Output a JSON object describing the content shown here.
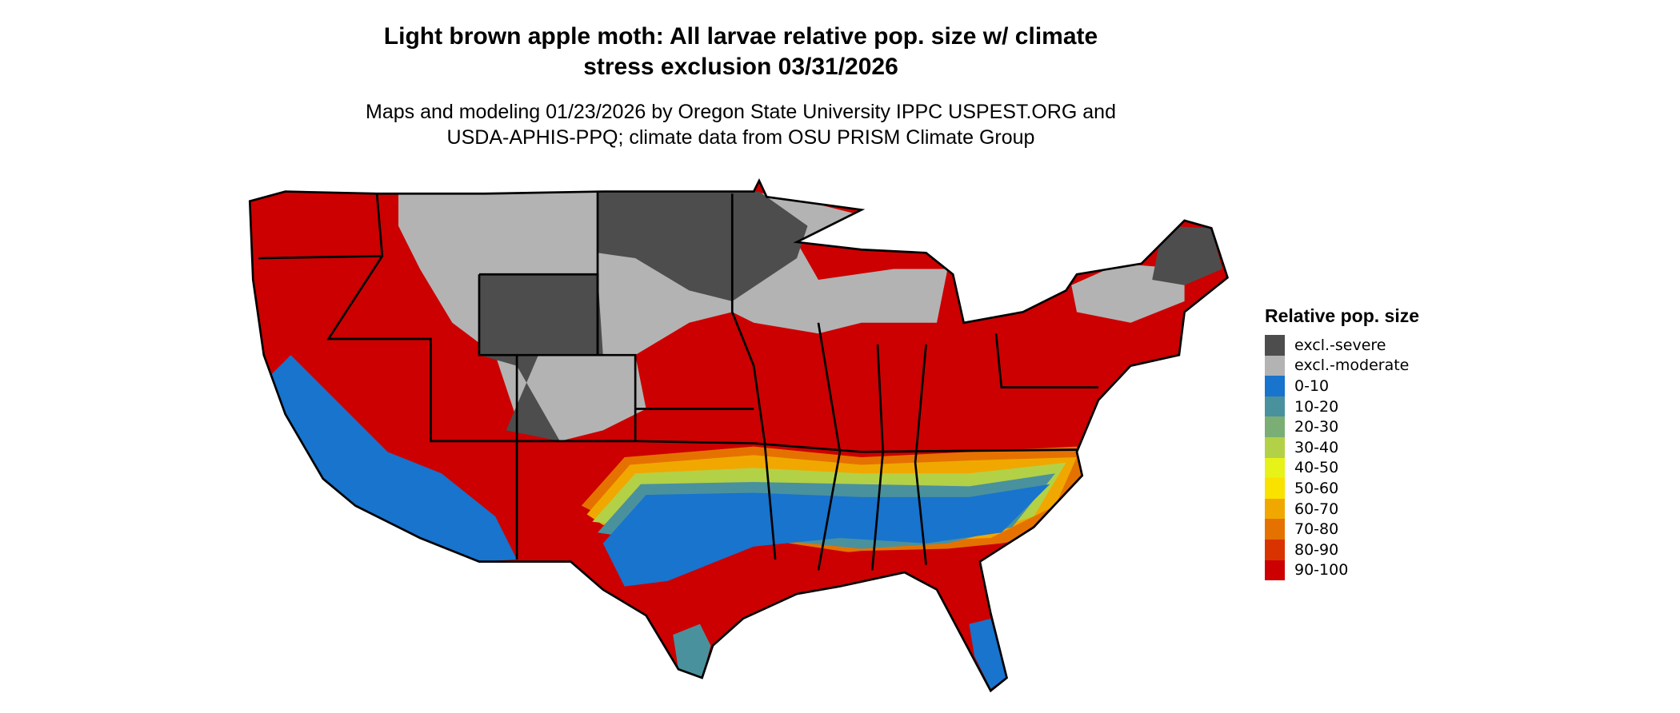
{
  "title_line1": "Light brown apple moth: All larvae relative pop. size w/ climate",
  "title_line2": "stress exclusion 03/31/2026",
  "subtitle_line1": "Maps and modeling 01/23/2026 by Oregon State University IPPC USPEST.ORG and",
  "subtitle_line2": "USDA-APHIS-PPQ; climate data from OSU PRISM Climate Group",
  "legend": {
    "title": "Relative pop. size",
    "items": [
      {
        "label": "excl.-severe",
        "color": "#4d4d4d"
      },
      {
        "label": "excl.-moderate",
        "color": "#b3b3b3"
      },
      {
        "label": "0-10",
        "color": "#1874cd"
      },
      {
        "label": "10-20",
        "color": "#4a919e"
      },
      {
        "label": "20-30",
        "color": "#7bae74"
      },
      {
        "label": "30-40",
        "color": "#b3d147"
      },
      {
        "label": "40-50",
        "color": "#e6f218"
      },
      {
        "label": "50-60",
        "color": "#f9e100"
      },
      {
        "label": "60-70",
        "color": "#f0a800"
      },
      {
        "label": "70-80",
        "color": "#e57200"
      },
      {
        "label": "80-90",
        "color": "#d93400"
      },
      {
        "label": "90-100",
        "color": "#cc0000"
      }
    ]
  }
}
